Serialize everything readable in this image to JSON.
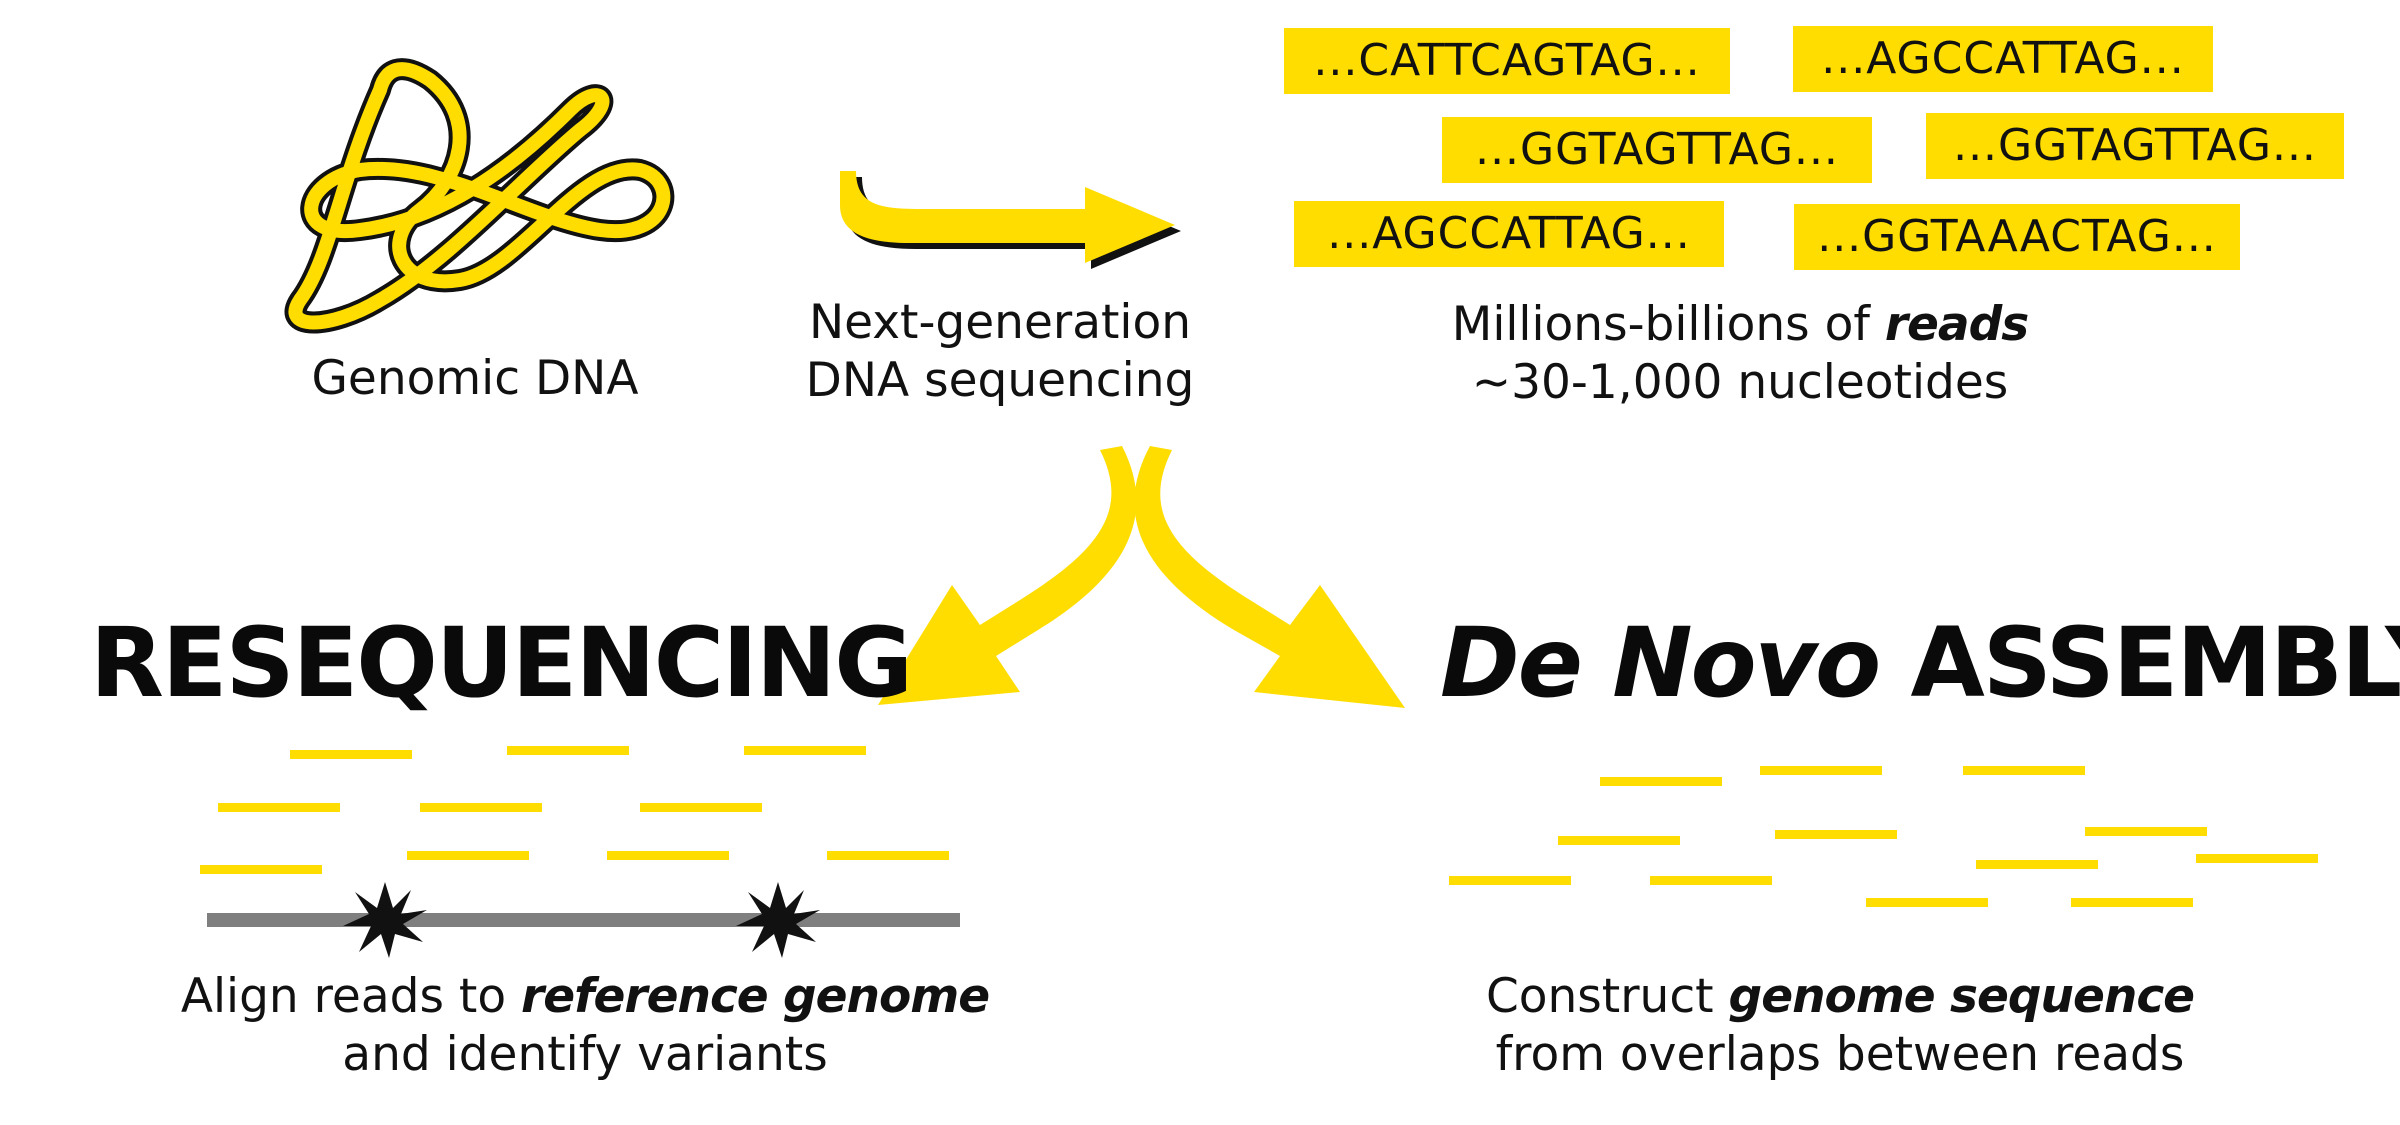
{
  "labels": {
    "genomic_dna": "Genomic DNA",
    "ngs_line1": "Next-generation",
    "ngs_line2": "DNA sequencing",
    "reads_line1_prefix": "Millions-billions of ",
    "reads_line1_bold": "reads",
    "reads_line2": "~30-1,000  nucleotides"
  },
  "reads": [
    "...CATTCAGTAG...",
    "...AGCCATTAG...",
    "...GGTAGTTAG...",
    "...GGTAGTTAG...",
    "...AGCCATTAG...",
    "...GGTAAACTAG..."
  ],
  "resequencing": {
    "title": "RESEQUENCING",
    "caption_prefix": "Align reads to ",
    "caption_bold": "reference genome",
    "caption_line2": "and identify variants"
  },
  "denovo": {
    "title_italic": "De Novo",
    "title_rest": " ASSEMBLY",
    "caption_prefix": "Construct ",
    "caption_bold": "genome sequence",
    "caption_line2": "from overlaps between reads"
  },
  "colors": {
    "accent": "#FFDD00",
    "reference_bar": "#7f7f7f",
    "text": "#111111",
    "variant_marker": "#111111"
  },
  "icons": [
    "dna-tangle-icon",
    "right-arrow-icon",
    "curved-arrow-left-icon",
    "curved-arrow-right-icon",
    "variant-burst-icon"
  ]
}
